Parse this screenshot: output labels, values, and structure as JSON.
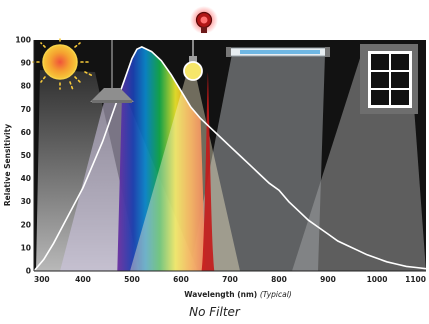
{
  "caption": "No Filter",
  "chart_data": {
    "type": "line",
    "xlabel": "Wavelength (nm)",
    "xlabel_note": "(Typical)",
    "ylabel": "Relative Sensitivity",
    "xlim": [
      300,
      1100
    ],
    "ylim": [
      0,
      100
    ],
    "x_ticks": [
      300,
      400,
      500,
      600,
      700,
      800,
      900,
      1000,
      1100
    ],
    "y_ticks": [
      0,
      10,
      20,
      30,
      40,
      50,
      60,
      70,
      80,
      90,
      100
    ],
    "grid": false,
    "series": [
      {
        "x": [
          300,
          320,
          340,
          360,
          380,
          400,
          420,
          440,
          460,
          480,
          500,
          510,
          520,
          540,
          560,
          580,
          600,
          620,
          640,
          660,
          680,
          700,
          720,
          740,
          760,
          780,
          800,
          820,
          840,
          860,
          880,
          900,
          920,
          940,
          960,
          980,
          1000,
          1020,
          1040,
          1060,
          1080,
          1100
        ],
        "y": [
          0,
          5,
          12,
          20,
          28,
          36,
          46,
          56,
          68,
          80,
          92,
          96,
          97,
          95,
          91,
          85,
          78,
          71,
          66,
          62,
          58,
          54,
          50,
          46,
          42,
          38,
          35,
          30,
          26,
          22,
          19,
          16,
          13,
          11,
          9,
          7,
          5.5,
          4,
          3,
          2,
          1.5,
          1
        ]
      }
    ],
    "colors": {
      "background": "#121212",
      "curve": "#ffffff",
      "led_peak": "#c41a1a",
      "sun": "#f4b324",
      "window_frame": "#6e6e6e"
    },
    "light_sources": [
      "sun-icon",
      "lamp-icon",
      "light-bulb-icon",
      "red-led-icon",
      "fluorescent-tube-icon",
      "window-icon"
    ]
  }
}
